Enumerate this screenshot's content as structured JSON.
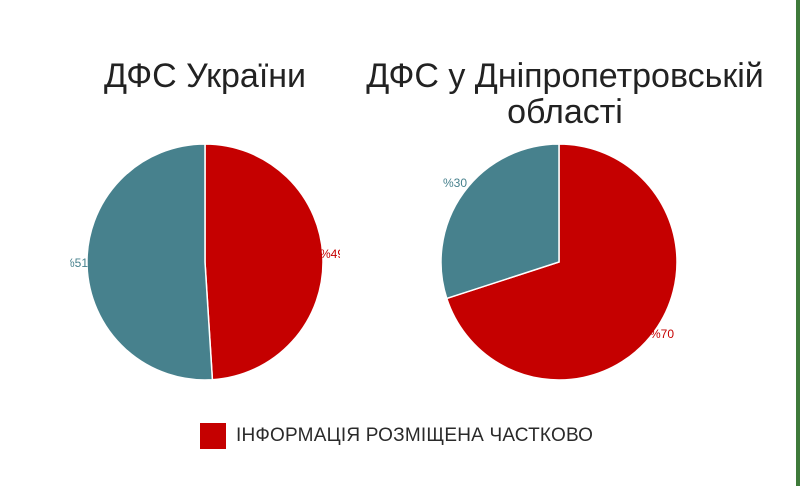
{
  "colors": {
    "partial": "#c50000",
    "other": "#47818d",
    "edge": "#3e7a3a"
  },
  "legend": {
    "label": "ІНФОРМАЦІЯ РОЗМІЩЕНА ЧАСТКОВО"
  },
  "chart_data": [
    {
      "type": "pie",
      "title": "ДФС України",
      "slices": [
        {
          "label": "%49",
          "value": 49,
          "color": "#c50000"
        },
        {
          "label": "%51",
          "value": 51,
          "color": "#47818d"
        }
      ]
    },
    {
      "type": "pie",
      "title": "ДФС у Дніпропетровській\nобласті",
      "slices": [
        {
          "label": "%70",
          "value": 70,
          "color": "#c50000"
        },
        {
          "label": "%30",
          "value": 30,
          "color": "#47818d"
        }
      ]
    }
  ]
}
